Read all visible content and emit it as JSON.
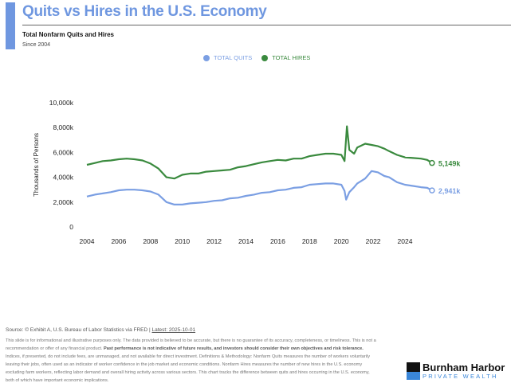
{
  "header": {
    "title": "Quits vs Hires in the U.S. Economy",
    "subtitle": "Total Nonfarm Quits and Hires",
    "since": "Since 2004"
  },
  "chart_data": {
    "type": "line",
    "ylabel": "Thousands of Persons",
    "ylim": [
      0,
      10000
    ],
    "yticks": [
      0,
      2000,
      4000,
      6000,
      8000,
      10000
    ],
    "ytick_labels": [
      "0",
      "2,000k",
      "4,000k",
      "6,000k",
      "8,000k",
      "10,000k"
    ],
    "xlim": [
      2003.5,
      2026
    ],
    "xticks": [
      2004,
      2006,
      2008,
      2010,
      2012,
      2014,
      2016,
      2018,
      2020,
      2022,
      2024
    ],
    "xtick_labels": [
      "2004",
      "2006",
      "2008",
      "2010",
      "2012",
      "2014",
      "2016",
      "2018",
      "2020",
      "2022",
      "2024"
    ],
    "series": [
      {
        "name": "TOTAL QUITS",
        "color": "#7b9fe3",
        "end_label": "2,941k",
        "x": [
          2004,
          2004.5,
          2005,
          2005.5,
          2006,
          2006.5,
          2007,
          2007.5,
          2008,
          2008.5,
          2009,
          2009.5,
          2010,
          2010.5,
          2011,
          2011.5,
          2012,
          2012.5,
          2013,
          2013.5,
          2014,
          2014.5,
          2015,
          2015.5,
          2016,
          2016.5,
          2017,
          2017.5,
          2018,
          2018.5,
          2019,
          2019.5,
          2020,
          2020.2,
          2020.3,
          2020.5,
          2020.8,
          2021,
          2021.5,
          2021.9,
          2022.3,
          2022.7,
          2023,
          2023.5,
          2024,
          2024.5,
          2025,
          2025.4,
          2025.7
        ],
        "y": [
          2450,
          2600,
          2700,
          2800,
          2950,
          3000,
          3000,
          2950,
          2850,
          2600,
          2000,
          1800,
          1800,
          1900,
          1950,
          2000,
          2100,
          2150,
          2300,
          2350,
          2500,
          2600,
          2750,
          2800,
          2950,
          3000,
          3150,
          3200,
          3400,
          3450,
          3500,
          3500,
          3400,
          2900,
          2200,
          2800,
          3200,
          3500,
          3900,
          4500,
          4400,
          4100,
          4000,
          3600,
          3400,
          3300,
          3200,
          3150,
          2941
        ]
      },
      {
        "name": "TOTAL HIRES",
        "color": "#3a8a3e",
        "end_label": "5,149k",
        "x": [
          2004,
          2004.5,
          2005,
          2005.5,
          2006,
          2006.5,
          2007,
          2007.5,
          2008,
          2008.5,
          2009,
          2009.5,
          2010,
          2010.5,
          2011,
          2011.5,
          2012,
          2012.5,
          2013,
          2013.5,
          2014,
          2014.5,
          2015,
          2015.5,
          2016,
          2016.5,
          2017,
          2017.5,
          2018,
          2018.5,
          2019,
          2019.5,
          2020,
          2020.2,
          2020.35,
          2020.5,
          2020.8,
          2021,
          2021.5,
          2021.9,
          2022.3,
          2022.7,
          2023,
          2023.5,
          2024,
          2024.5,
          2025,
          2025.4,
          2025.7
        ],
        "y": [
          5000,
          5150,
          5300,
          5350,
          5450,
          5500,
          5450,
          5350,
          5100,
          4700,
          4000,
          3900,
          4200,
          4300,
          4300,
          4450,
          4500,
          4550,
          4600,
          4800,
          4900,
          5050,
          5200,
          5300,
          5400,
          5350,
          5500,
          5500,
          5700,
          5800,
          5900,
          5900,
          5800,
          5300,
          8100,
          6200,
          5900,
          6400,
          6700,
          6600,
          6500,
          6300,
          6100,
          5800,
          5600,
          5550,
          5500,
          5400,
          5149
        ]
      }
    ]
  },
  "legend": [
    "TOTAL QUITS",
    "TOTAL HIRES"
  ],
  "footer": {
    "source": "Source: © Exhibit A, U.S. Bureau of Labor Statistics via FRED | ",
    "latest": "Latest: 2025-10-01",
    "disc1": "This slide is for informational and illustrative purposes only. The data provided is believed to be accurate, but there is no guarantee of its accuracy, completeness, or timeliness. This is not a recommendation or offer of any financial product. ",
    "disc_bold": "Past performance is not indicative of future results, and investors should consider their own objectives and risk tolerance.",
    "disc2": " Indices, if presented, do not include fees, are unmanaged, and not available for direct investment. Definitions & Methodology: Nonfarm Quits measures the number of workers voluntarily leaving their jobs, often used as an indicator of worker confidence in the job market and economic conditions. Nonfarm Hires measures the number of new hires in the U.S. economy excluding farm workers, reflecting labor demand and overall hiring activity across various sectors. This chart tracks the difference between quits and hires occurring in the U.S. economy, both of which have important economic implications."
  },
  "logo": {
    "line1": "Burnham Harbor",
    "line2": "PRIVATE WEALTH"
  }
}
